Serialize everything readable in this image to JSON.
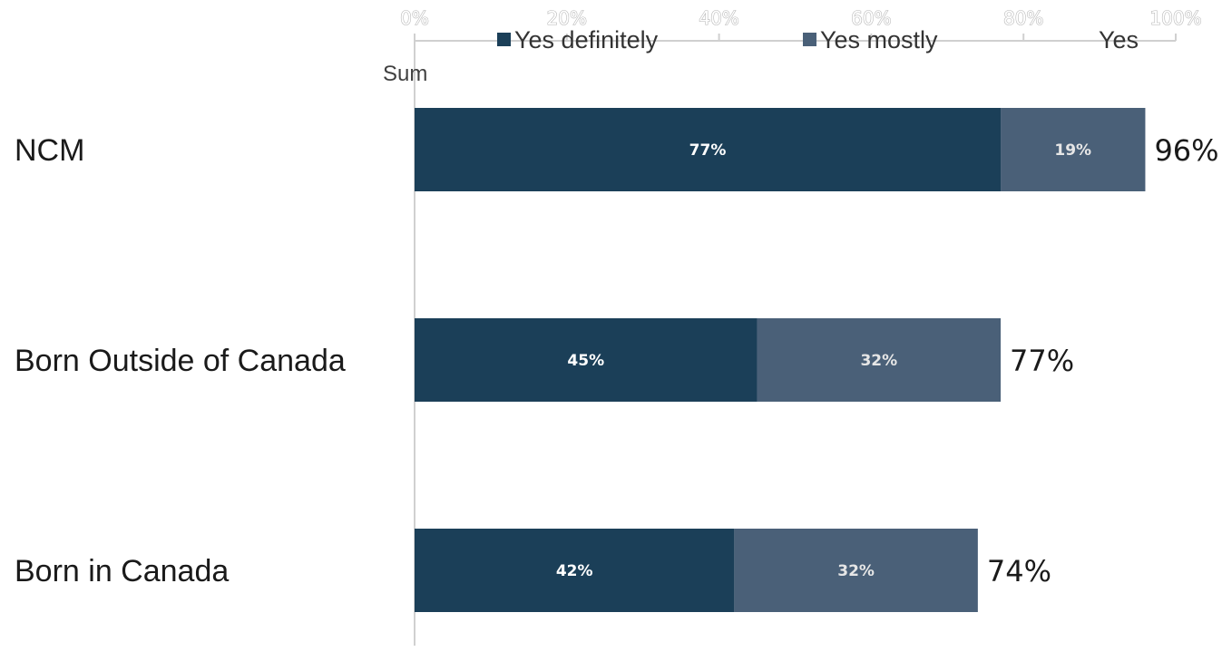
{
  "chart_data": {
    "type": "bar",
    "orientation": "horizontal",
    "stacked": true,
    "categories": [
      "NCM",
      "Born Outside of Canada",
      "Born in Canada"
    ],
    "series": [
      {
        "name": "Yes definitely",
        "values": [
          77,
          45,
          42
        ],
        "labels": [
          "77%",
          "45%",
          "42%"
        ],
        "color": "#1b3f58"
      },
      {
        "name": "Yes mostly",
        "values": [
          19,
          32,
          32
        ],
        "labels": [
          "19%",
          "32%",
          "32%"
        ],
        "color": "#4a6078"
      }
    ],
    "totals": [
      96,
      77,
      74
    ],
    "total_labels": [
      "96%",
      "77%",
      "74%"
    ],
    "total_series_name": "Yes Sum",
    "x_ticks": [
      "0%",
      "20%",
      "40%",
      "60%",
      "80%",
      "100%"
    ],
    "xlim": [
      0,
      100
    ],
    "axis_position": "top",
    "grid": false,
    "legend_position": "top"
  },
  "colors": {
    "axis": "#d0d0d0",
    "segment_text_dark": "#ffffff",
    "segment_text_light": "#e6e6e6"
  }
}
